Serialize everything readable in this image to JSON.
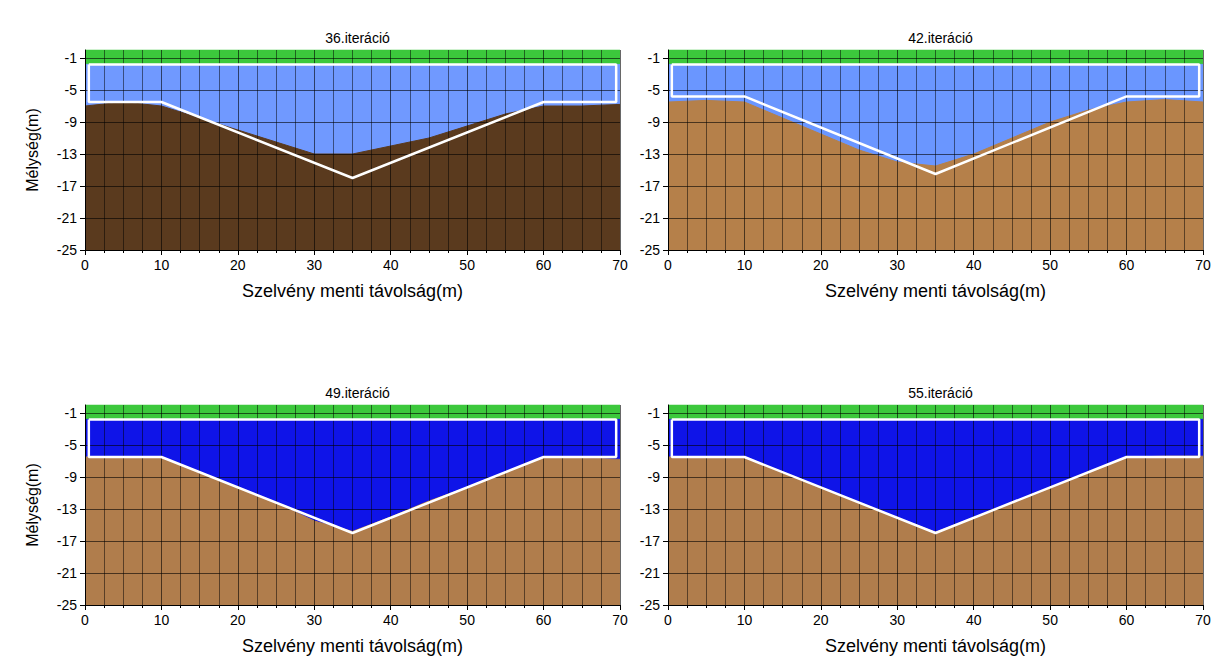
{
  "chart_data": [
    {
      "type": "area",
      "title": "36.iteráció",
      "x_label": "Szelvény menti távolság(m)",
      "y_label": "Mélység(m)",
      "xlim": [
        0,
        70
      ],
      "xticks": [
        0,
        10,
        20,
        30,
        40,
        50,
        60,
        70
      ],
      "ylim": [
        -25,
        0
      ],
      "yticks": [
        -1,
        -5,
        -9,
        -13,
        -17,
        -21,
        -25
      ],
      "grid": true,
      "x": [
        0,
        5,
        10,
        15,
        20,
        25,
        30,
        35,
        40,
        45,
        50,
        55,
        60,
        65,
        70
      ],
      "series": [
        {
          "color": "#3cc83c",
          "values": [
            0,
            0,
            0,
            0,
            0,
            0,
            0,
            0,
            0,
            0,
            0,
            0,
            0,
            0,
            0
          ]
        },
        {
          "color": "#7099ff",
          "values": [
            -1.8,
            -1.8,
            -1.8,
            -1.8,
            -1.8,
            -1.8,
            -1.8,
            -1.8,
            -1.8,
            -1.8,
            -1.8,
            -1.8,
            -1.8,
            -1.8,
            -1.8
          ]
        },
        {
          "color": "#5a3a1e",
          "values": [
            -7,
            -6.5,
            -7,
            -8.5,
            -10,
            -11.5,
            -13,
            -13,
            -12,
            -11,
            -9.5,
            -8,
            -7,
            -7,
            -6.8
          ]
        }
      ],
      "model": {
        "type": "line",
        "color": "#ffffff",
        "x": [
          0.5,
          69.5,
          69.5,
          60,
          35,
          10,
          0.5,
          0.5
        ],
        "values": [
          -1.8,
          -1.8,
          -6.5,
          -6.5,
          -16,
          -6.5,
          -6.5,
          -1.8
        ]
      }
    },
    {
      "type": "area",
      "title": "42.iteráció",
      "x_label": "Szelvény menti távolság(m)",
      "xlim": [
        0,
        70
      ],
      "xticks": [
        0,
        10,
        20,
        30,
        40,
        50,
        60,
        70
      ],
      "ylim": [
        -25,
        0
      ],
      "yticks": [
        -1,
        -5,
        -9,
        -13,
        -17,
        -21,
        -25
      ],
      "grid": true,
      "x": [
        0,
        5,
        10,
        15,
        20,
        25,
        30,
        35,
        40,
        45,
        50,
        55,
        60,
        65,
        70
      ],
      "series": [
        {
          "color": "#3cc83c",
          "values": [
            0,
            0,
            0,
            0,
            0,
            0,
            0,
            0,
            0,
            0,
            0,
            0,
            0,
            0,
            0
          ]
        },
        {
          "color": "#6a96ff",
          "values": [
            -1.8,
            -1.8,
            -1.8,
            -1.8,
            -1.8,
            -1.8,
            -1.8,
            -1.8,
            -1.8,
            -1.8,
            -1.8,
            -1.8,
            -1.8,
            -1.8,
            -1.8
          ]
        },
        {
          "color": "#b5804a",
          "values": [
            -6.5,
            -6.3,
            -6.5,
            -8.5,
            -10.5,
            -12.5,
            -14,
            -14.5,
            -13,
            -11,
            -9,
            -7.5,
            -6.5,
            -6.2,
            -6.5
          ]
        }
      ],
      "model": {
        "type": "line",
        "color": "#ffffff",
        "x": [
          0.5,
          69.5,
          69.5,
          60,
          35,
          10,
          0.5,
          0.5
        ],
        "values": [
          -1.8,
          -1.8,
          -5.8,
          -5.8,
          -15.5,
          -5.8,
          -5.8,
          -1.8
        ]
      }
    },
    {
      "type": "area",
      "title": "49.iteráció",
      "x_label": "Szelvény menti távolság(m)",
      "y_label": "Mélység(m)",
      "xlim": [
        0,
        70
      ],
      "xticks": [
        0,
        10,
        20,
        30,
        40,
        50,
        60,
        70
      ],
      "ylim": [
        -25,
        0
      ],
      "yticks": [
        -1,
        -5,
        -9,
        -13,
        -17,
        -21,
        -25
      ],
      "grid": true,
      "x": [
        0,
        5,
        10,
        15,
        20,
        25,
        30,
        35,
        40,
        45,
        50,
        55,
        60,
        65,
        70
      ],
      "series": [
        {
          "color": "#3cc83c",
          "values": [
            0,
            0,
            0,
            0,
            0,
            0,
            0,
            0,
            0,
            0,
            0,
            0,
            0,
            0,
            0
          ]
        },
        {
          "color": "#0f14e8",
          "values": [
            -1.8,
            -1.8,
            -1.8,
            -1.8,
            -1.8,
            -1.8,
            -1.8,
            -1.8,
            -1.8,
            -1.8,
            -1.8,
            -1.8,
            -1.8,
            -1.8,
            -1.8
          ]
        },
        {
          "color": "#b07d4c",
          "values": [
            -6.5,
            -6.5,
            -6.5,
            -8.5,
            -10.3,
            -12.2,
            -14.5,
            -15.8,
            -14,
            -12,
            -10.3,
            -8.5,
            -6.6,
            -6.6,
            -6.8
          ]
        }
      ],
      "model": {
        "type": "line",
        "color": "#ffffff",
        "x": [
          0.5,
          69.5,
          69.5,
          60,
          35,
          10,
          0.5,
          0.5
        ],
        "values": [
          -1.8,
          -1.8,
          -6.5,
          -6.5,
          -16,
          -6.5,
          -6.5,
          -1.8
        ]
      }
    },
    {
      "type": "area",
      "title": "55.iteráció",
      "x_label": "Szelvény menti távolság(m)",
      "xlim": [
        0,
        70
      ],
      "xticks": [
        0,
        10,
        20,
        30,
        40,
        50,
        60,
        70
      ],
      "ylim": [
        -25,
        0
      ],
      "yticks": [
        -1,
        -5,
        -9,
        -13,
        -17,
        -21,
        -25
      ],
      "grid": true,
      "x": [
        0,
        5,
        10,
        15,
        20,
        25,
        30,
        35,
        40,
        45,
        50,
        55,
        60,
        65,
        70
      ],
      "series": [
        {
          "color": "#3cc83c",
          "values": [
            0,
            0,
            0,
            0,
            0,
            0,
            0,
            0,
            0,
            0,
            0,
            0,
            0,
            0,
            0
          ]
        },
        {
          "color": "#0f14e8",
          "values": [
            -1.8,
            -1.8,
            -1.8,
            -1.8,
            -1.8,
            -1.8,
            -1.8,
            -1.8,
            -1.8,
            -1.8,
            -1.8,
            -1.8,
            -1.8,
            -1.8,
            -1.8
          ]
        },
        {
          "color": "#b07d4c",
          "values": [
            -6.5,
            -6.5,
            -6.5,
            -8.4,
            -10.3,
            -12.2,
            -14.1,
            -15.9,
            -14.1,
            -12.2,
            -10.3,
            -8.4,
            -6.5,
            -6.4,
            -6.4
          ]
        }
      ],
      "model": {
        "type": "line",
        "color": "#ffffff",
        "x": [
          0.5,
          69.5,
          69.5,
          60,
          35,
          10,
          0.5,
          0.5
        ],
        "values": [
          -1.8,
          -1.8,
          -6.5,
          -6.5,
          -16,
          -6.5,
          -6.5,
          -1.8
        ]
      }
    }
  ]
}
